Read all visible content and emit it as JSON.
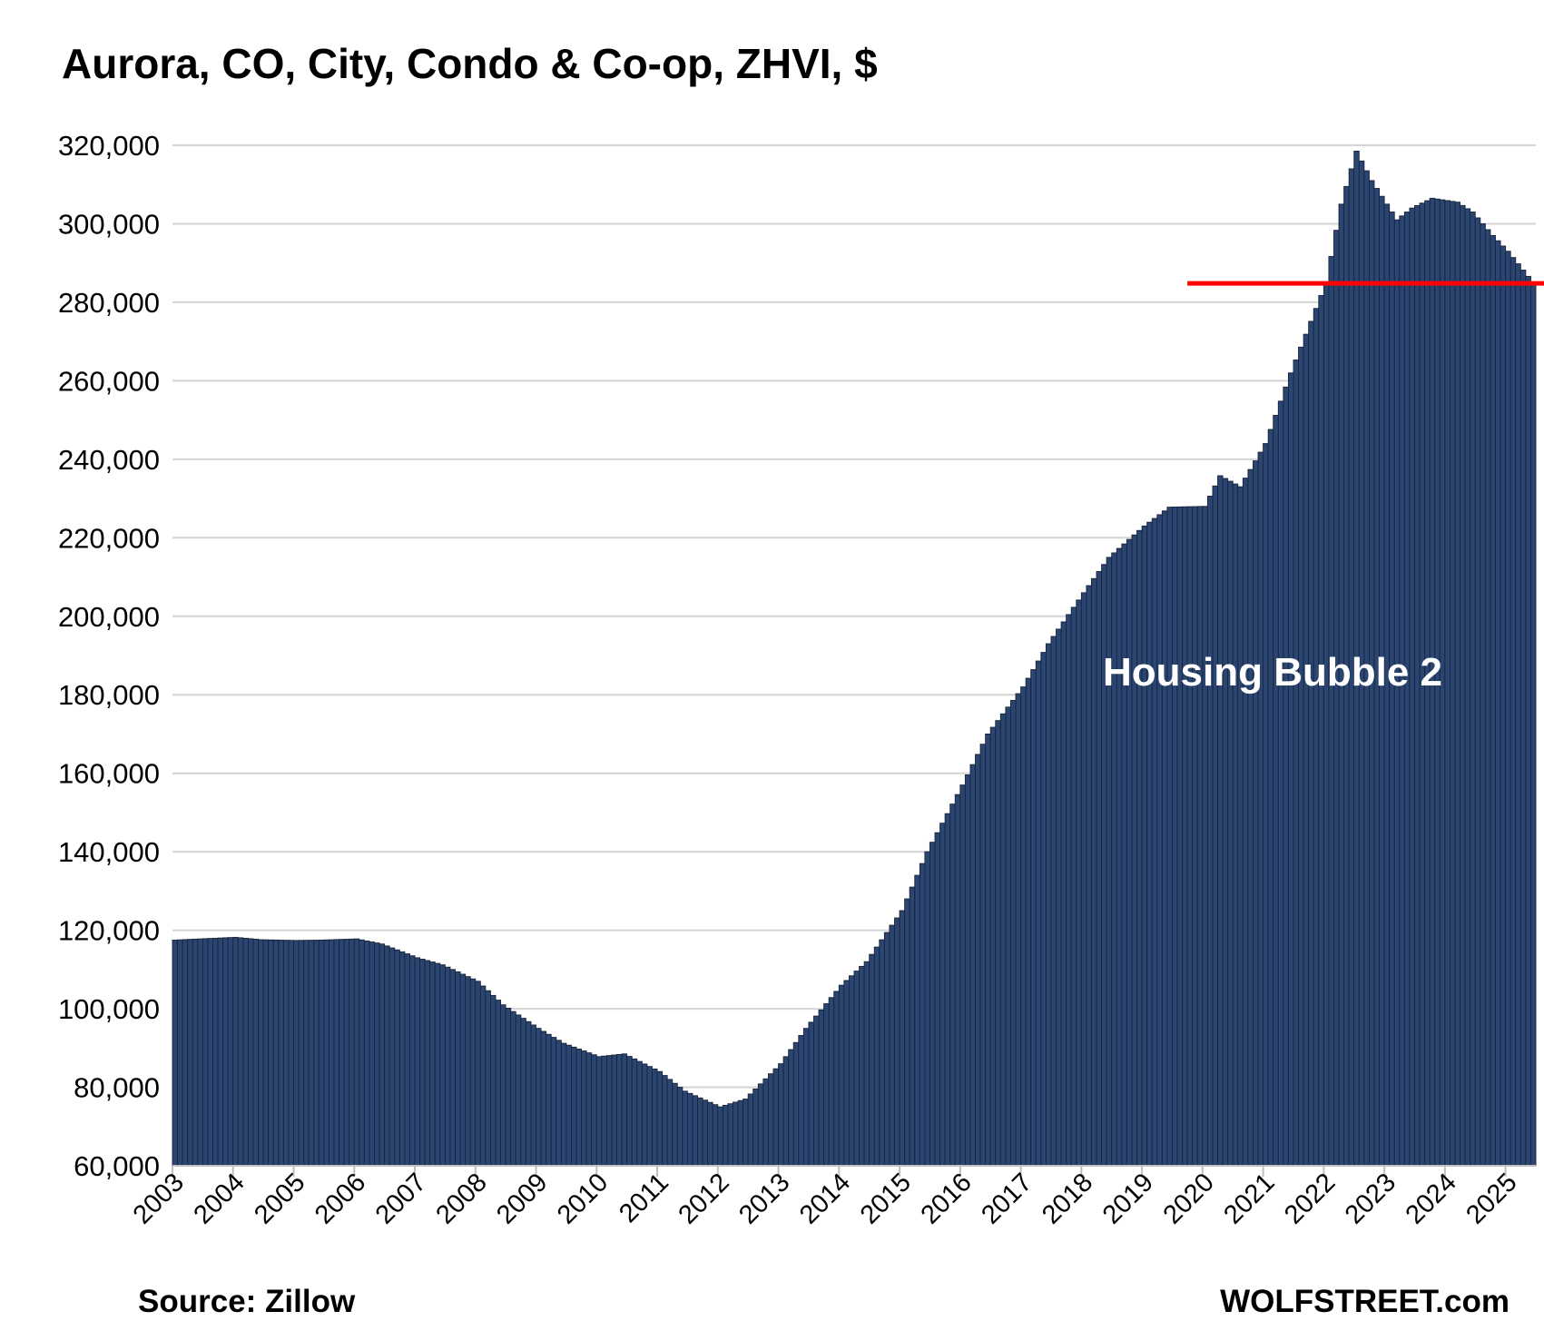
{
  "chart_data": {
    "type": "bar",
    "title": "Aurora, CO, City, Condo & Co-op, ZHVI, $",
    "xlabel": "",
    "ylabel": "",
    "ylim": [
      60000,
      320000
    ],
    "yticks": [
      "60,000",
      "80,000",
      "100,000",
      "120,000",
      "140,000",
      "160,000",
      "180,000",
      "200,000",
      "220,000",
      "240,000",
      "260,000",
      "280,000",
      "300,000",
      "320,000"
    ],
    "year_labels": [
      "2003",
      "2004",
      "2005",
      "2006",
      "2007",
      "2008",
      "2009",
      "2010",
      "2011",
      "2012",
      "2013",
      "2014",
      "2015",
      "2016",
      "2017",
      "2018",
      "2019",
      "2020",
      "2021",
      "2022",
      "2023",
      "2024",
      "2025"
    ],
    "frequency": "monthly",
    "start": "2003-01",
    "end": "2025-06",
    "anchors": [
      [
        "2003-01",
        117500
      ],
      [
        "2003-06",
        117800
      ],
      [
        "2004-01",
        118200
      ],
      [
        "2004-06",
        117600
      ],
      [
        "2005-01",
        117400
      ],
      [
        "2005-06",
        117500
      ],
      [
        "2006-01",
        117800
      ],
      [
        "2006-06",
        116500
      ],
      [
        "2007-01",
        113000
      ],
      [
        "2007-06",
        111200
      ],
      [
        "2008-01",
        107000
      ],
      [
        "2008-06",
        101000
      ],
      [
        "2009-01",
        95000
      ],
      [
        "2009-06",
        91200
      ],
      [
        "2010-01",
        87800
      ],
      [
        "2010-06",
        88500
      ],
      [
        "2011-01",
        84000
      ],
      [
        "2011-06",
        79000
      ],
      [
        "2012-01",
        75000
      ],
      [
        "2012-06",
        77000
      ],
      [
        "2013-01",
        86000
      ],
      [
        "2013-06",
        95000
      ],
      [
        "2014-01",
        106000
      ],
      [
        "2014-06",
        112000
      ],
      [
        "2015-01",
        125000
      ],
      [
        "2015-06",
        140000
      ],
      [
        "2016-01",
        157000
      ],
      [
        "2016-06",
        170000
      ],
      [
        "2017-01",
        182000
      ],
      [
        "2017-06",
        193000
      ],
      [
        "2018-01",
        206000
      ],
      [
        "2018-06",
        215000
      ],
      [
        "2019-01",
        223000
      ],
      [
        "2019-06",
        227800
      ],
      [
        "2020-01",
        228000
      ],
      [
        "2020-04",
        235800
      ],
      [
        "2020-08",
        233000
      ],
      [
        "2021-01",
        244000
      ],
      [
        "2021-06",
        262000
      ],
      [
        "2022-01",
        285000
      ],
      [
        "2022-04",
        305000
      ],
      [
        "2022-07",
        318500
      ],
      [
        "2022-10",
        311000
      ],
      [
        "2023-03",
        301000
      ],
      [
        "2023-06",
        304000
      ],
      [
        "2023-10",
        306500
      ],
      [
        "2024-03",
        305500
      ],
      [
        "2024-06",
        303000
      ],
      [
        "2024-10",
        297000
      ],
      [
        "2025-01",
        293000
      ],
      [
        "2025-06",
        285000
      ]
    ],
    "bar_color": "#2b4573",
    "reference_line": {
      "value": 284800,
      "color": "#ff0000",
      "from": "2019-10"
    },
    "annotation": "Housing Bubble 2",
    "grid": true,
    "legend": "none"
  },
  "footer": {
    "source": "Source: Zillow",
    "brand": "WOLFSTREET.com"
  }
}
